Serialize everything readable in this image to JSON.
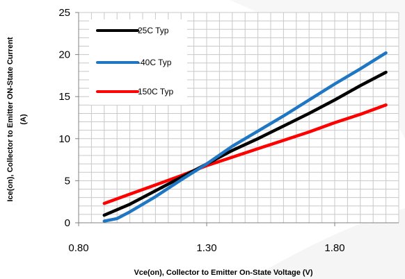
{
  "chart_data": {
    "type": "line",
    "xlabel": "Vce(on), Collector to Emitter On-State Voltage (V)",
    "ylabel_line1": "Ice(on), Collector to Emitter ON-State Current",
    "ylabel_line2": "(A)",
    "xlim": [
      0.8,
      2.05
    ],
    "ylim": [
      0,
      25
    ],
    "x_ticks": [
      0.8,
      1.3,
      1.8
    ],
    "x_tick_labels": [
      "0.80",
      "1.30",
      "1.80"
    ],
    "y_ticks": [
      0,
      5,
      10,
      15,
      20,
      25
    ],
    "y_tick_labels": [
      "0",
      "5",
      "10",
      "15",
      "20",
      "25"
    ],
    "grid": true,
    "legend_position": "top-left",
    "series": [
      {
        "name": "25C Typ",
        "color": "#000000",
        "x": [
          0.9,
          1.0,
          1.1,
          1.2,
          1.3,
          1.4,
          1.5,
          1.6,
          1.7,
          1.8,
          1.9,
          2.0
        ],
        "y": [
          0.9,
          2.2,
          3.8,
          5.4,
          7.0,
          8.6,
          10.0,
          11.5,
          13.0,
          14.6,
          16.3,
          17.9
        ]
      },
      {
        "name": "-40C Typ",
        "color": "#1f77c4",
        "x": [
          0.9,
          0.95,
          1.0,
          1.1,
          1.2,
          1.3,
          1.4,
          1.5,
          1.6,
          1.7,
          1.8,
          1.9,
          2.0
        ],
        "y": [
          0.2,
          0.5,
          1.3,
          3.1,
          5.1,
          7.0,
          9.1,
          10.9,
          12.7,
          14.6,
          16.5,
          18.3,
          20.2
        ]
      },
      {
        "name": "150C Typ",
        "color": "#ff0000",
        "x": [
          0.9,
          1.0,
          1.1,
          1.2,
          1.3,
          1.4,
          1.5,
          1.6,
          1.7,
          1.8,
          1.9,
          2.0
        ],
        "y": [
          2.3,
          3.4,
          4.5,
          5.6,
          6.8,
          7.8,
          8.8,
          9.8,
          10.8,
          11.9,
          12.9,
          14.0
        ]
      }
    ]
  }
}
